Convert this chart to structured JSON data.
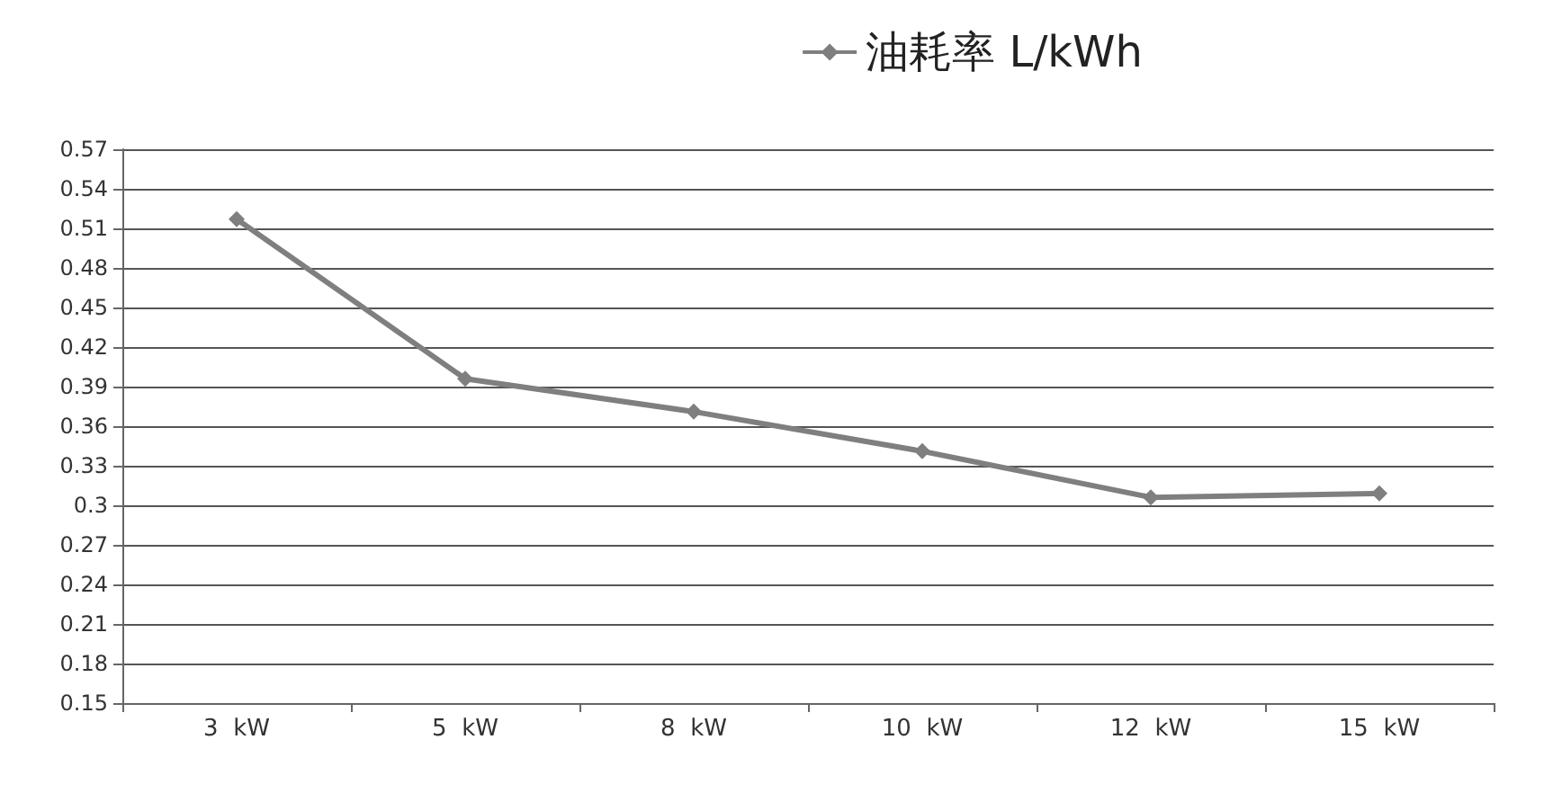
{
  "chart_data": {
    "type": "line",
    "categories": [
      "3  kW",
      "5  kW",
      "8  kW",
      "10  kW",
      "12  kW",
      "15  kW"
    ],
    "series": [
      {
        "name": "油耗率 L/kWh",
        "color": "#7f7f7f",
        "values": [
          0.517,
          0.396,
          0.371,
          0.341,
          0.306,
          0.309
        ]
      }
    ],
    "ylim": [
      0.15,
      0.57
    ],
    "yticks": [
      0.15,
      0.18,
      0.21,
      0.24,
      0.27,
      0.3,
      0.33,
      0.36,
      0.39,
      0.42,
      0.45,
      0.48,
      0.51,
      0.54,
      0.57
    ],
    "grid": "y",
    "legend": "top right",
    "marker": "diamond",
    "line_style": "solid"
  }
}
